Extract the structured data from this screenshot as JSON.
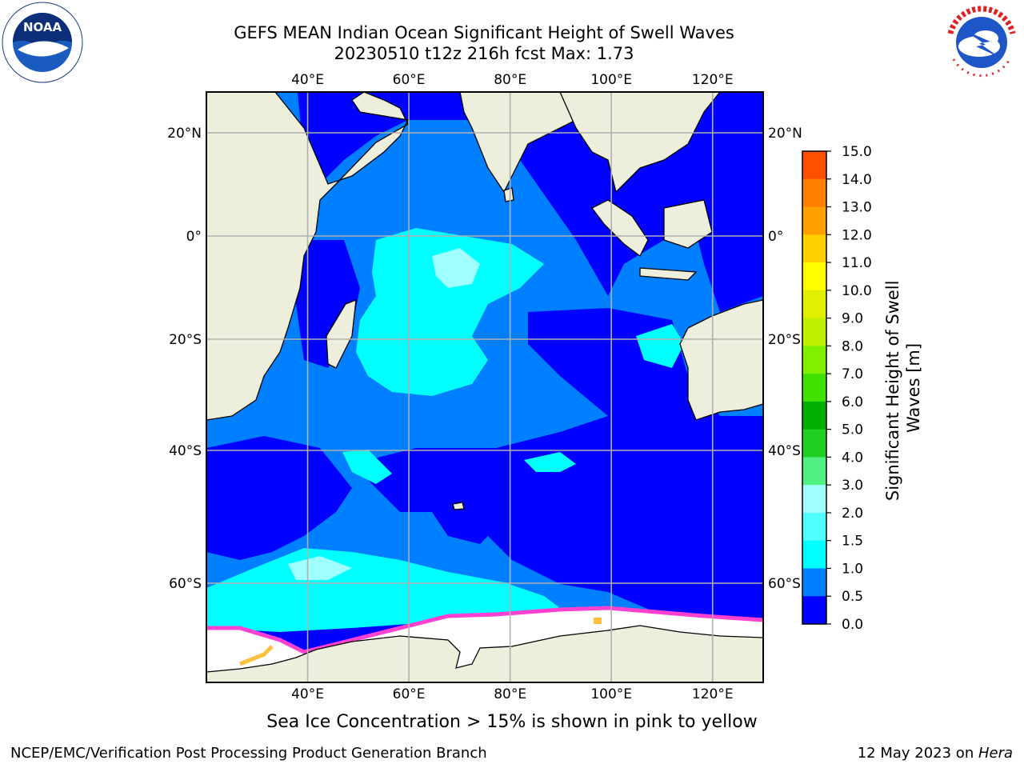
{
  "title_line1": "GEFS MEAN Indian Ocean Significant Height of Swell Waves",
  "title_line2": "20230510 t12z 216h fcst   Max: 1.73",
  "logos": {
    "left": "NOAA",
    "right": "NATIONAL WEATHER SERVICE"
  },
  "map": {
    "lon_ticks": [
      "40°E",
      "60°E",
      "80°E",
      "100°E",
      "120°E"
    ],
    "lat_ticks": [
      "20°N",
      "0°",
      "20°S",
      "40°S",
      "60°S"
    ],
    "extent": {
      "lon_min": 20,
      "lon_max": 130,
      "lat_min": -72,
      "lat_max": 28
    },
    "ocean_color": "#0080ff",
    "land_color": "#eeeedd",
    "ice_color": "#ffffff"
  },
  "colorbar": {
    "title_line1": "Significant Height of Swell",
    "title_line2": "Waves [m]",
    "ticks": [
      "15.0",
      "14.0",
      "13.0",
      "12.0",
      "11.0",
      "10.0",
      "9.0",
      "8.0",
      "7.0",
      "6.0",
      "5.0",
      "4.0",
      "3.0",
      "2.0",
      "1.5",
      "1.0",
      "0.5",
      "0.0"
    ],
    "colors": [
      "#0000ff",
      "#0080ff",
      "#00ffff",
      "#50ffff",
      "#a0ffff",
      "#50f080",
      "#20d020",
      "#00b000",
      "#40e000",
      "#80f000",
      "#c0f000",
      "#e0f000",
      "#ffff00",
      "#ffd000",
      "#ffa000",
      "#ff8000",
      "#ff5000",
      "#ff2000",
      "#ff0000"
    ]
  },
  "ice_note": "Sea Ice Concentration > 15% is shown in pink to yellow",
  "footer_left": "NCEP/EMC/Verification Post Processing Product Generation Branch",
  "footer_right_prefix": "12 May 2023 on ",
  "footer_right_host": "Hera"
}
